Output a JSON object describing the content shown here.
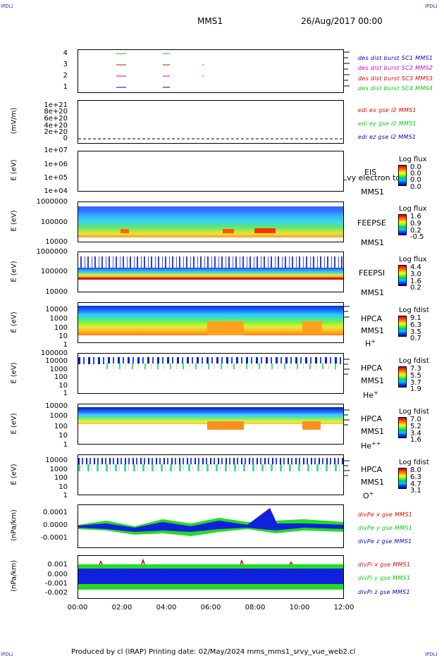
{
  "corners": {
    "tl": "IPDLI",
    "tr": "IPDLI",
    "bl": "IPDLI",
    "br": "IPDLI"
  },
  "header": {
    "spacecraft": "MMS1",
    "date": "26/Aug/2017 00:00"
  },
  "footer": {
    "text": "Produced by cl (IRAP)   Printing date: 02/May/2024   mms_mms1_srvy_vue_web2.cl"
  },
  "colors": {
    "c1": "#0000cc",
    "c2": "#cc00cc",
    "c3": "#dd0000",
    "c4": "#00cc00",
    "ex": "#dd0000",
    "ey": "#00cc00",
    "ez": "#0000cc"
  },
  "chart_data": [
    {
      "type": "line",
      "panel": "des-dist-burst",
      "yticks": [
        "4",
        "3",
        "2",
        "1"
      ],
      "series": [
        {
          "name": "des dist burst SC1 MMS1",
          "color": "#0000cc"
        },
        {
          "name": "des dist burst SC2 MMS2",
          "color": "#cc00cc"
        },
        {
          "name": "des dist burst SC3 MMS3",
          "color": "#dd0000"
        },
        {
          "name": "des dist burst SC4 MMS4",
          "color": "#00cc00"
        }
      ]
    },
    {
      "type": "line",
      "panel": "edi",
      "ylabel": "(mV/m)",
      "yticks": [
        "1e+21",
        "8e+20",
        "6e+20",
        "4e+20",
        "2e+20",
        "0"
      ],
      "series": [
        {
          "name": "edi ex gse l2 MMS1",
          "color": "#dd0000"
        },
        {
          "name": "edi ey gse l2 MMS1",
          "color": "#00cc00"
        },
        {
          "name": "edi ez gse l2 MMS1",
          "color": "#0000cc"
        }
      ]
    },
    {
      "type": "heatmap",
      "panel": "eis",
      "ylabel": "E (eV)",
      "yticks": [
        "1e+07",
        "1e+06",
        "1e+05",
        "1e+04"
      ],
      "label1": "EIS",
      "label2": "MMS1",
      "overlay": "Lvy electron tc",
      "cbar": {
        "title": "Log flux",
        "ticks": [
          "0.0",
          "0.0",
          "0.0",
          "0.0"
        ]
      }
    },
    {
      "type": "heatmap",
      "panel": "feeps-e",
      "ylabel": "E (eV)",
      "yticks": [
        "1000000",
        "100000",
        "10000"
      ],
      "label1": "FEEPSE",
      "label2": "MMS1",
      "cbar": {
        "title": "Log flux",
        "ticks": [
          "1.6",
          "0.9",
          "0.2",
          "-0.5"
        ]
      }
    },
    {
      "type": "heatmap",
      "panel": "feeps-i",
      "ylabel": "E (eV)",
      "yticks": [
        "1000000",
        "100000",
        "10000"
      ],
      "label1": "FEEPSI",
      "label2": "MMS1",
      "cbar": {
        "title": "Log flux",
        "ticks": [
          "4.4",
          "3.0",
          "1.6",
          "0.2"
        ]
      }
    },
    {
      "type": "heatmap",
      "panel": "hpca-h",
      "ylabel": "E (eV)",
      "yticks": [
        "10000",
        "1000",
        "100",
        "10",
        "1"
      ],
      "label1": "HPCA",
      "label2": "MMS1",
      "species": "H+",
      "cbar": {
        "title": "Log fdist",
        "ticks": [
          "9.1",
          "6.3",
          "3.5",
          "0.7"
        ]
      }
    },
    {
      "type": "heatmap",
      "panel": "hpca-he",
      "ylabel": "E (eV)",
      "yticks": [
        "100000",
        "10000",
        "1000",
        "100",
        "10",
        "1"
      ],
      "label1": "HPCA",
      "label2": "MMS1",
      "species": "He+",
      "cbar": {
        "title": "Log fdist",
        "ticks": [
          "7.3",
          "5.5",
          "3.7",
          "1.9"
        ]
      }
    },
    {
      "type": "heatmap",
      "panel": "hpca-hepp",
      "ylabel": "E (eV)",
      "yticks": [
        "10000",
        "1000",
        "100",
        "10",
        "1"
      ],
      "label1": "HPCA",
      "label2": "MMS1",
      "species": "He++",
      "cbar": {
        "title": "Log fdist",
        "ticks": [
          "7.0",
          "5.2",
          "3.4",
          "1.6"
        ]
      }
    },
    {
      "type": "heatmap",
      "panel": "hpca-o",
      "ylabel": "E (eV)",
      "yticks": [
        "10000",
        "1000",
        "100",
        "10",
        "1"
      ],
      "label1": "HPCA",
      "label2": "MMS1",
      "species": "O+",
      "cbar": {
        "title": "Log fdist",
        "ticks": [
          "8.0",
          "6.3",
          "4.7",
          "3.1"
        ]
      }
    },
    {
      "type": "line",
      "panel": "divpe",
      "ylabel": "(nPa/km)",
      "yticks": [
        "0.0001",
        "0.0000",
        "-0.0001"
      ],
      "series": [
        {
          "name": "divPe x gse MMS1",
          "color": "#dd0000"
        },
        {
          "name": "divPe y gse MMS1",
          "color": "#00cc00"
        },
        {
          "name": "divPe z gse MMS1",
          "color": "#0000cc"
        }
      ]
    },
    {
      "type": "line",
      "panel": "divpi",
      "ylabel": "(nPa/km)",
      "yticks": [
        "0.001",
        "0.000",
        "-0.001",
        "-0.002"
      ],
      "series": [
        {
          "name": "divPi x gse MMS1",
          "color": "#dd0000"
        },
        {
          "name": "divPi y gse MMS1",
          "color": "#00cc00"
        },
        {
          "name": "divPi z gse MMS1",
          "color": "#0000cc"
        }
      ]
    }
  ],
  "xaxis": {
    "ticks": [
      "00:00",
      "02:00",
      "04:00",
      "06:00",
      "08:00",
      "10:00",
      "12:00"
    ]
  }
}
